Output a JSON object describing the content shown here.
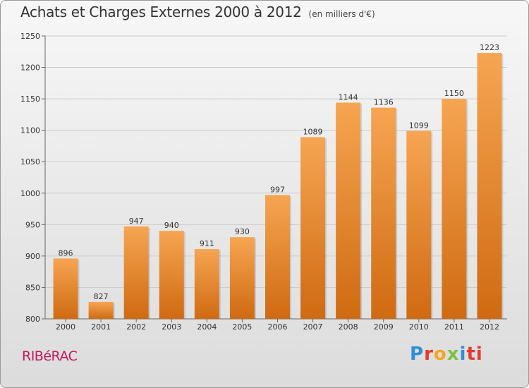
{
  "title": "Achats et Charges Externes 2000 à 2012",
  "subtitle": "(en milliers d'€)",
  "place": "RIBéRAC",
  "logo": {
    "text": "Proxiti",
    "letters": [
      "P",
      "r",
      "o",
      "x",
      "i",
      "ti"
    ]
  },
  "colors": {
    "bar_top": "#f6a552",
    "bar_bottom": "#cf6a12",
    "grid": "#cccccc",
    "axis": "#666666"
  },
  "chart_data": {
    "type": "bar",
    "categories": [
      "2000",
      "2001",
      "2002",
      "2003",
      "2004",
      "2005",
      "2006",
      "2007",
      "2008",
      "2009",
      "2010",
      "2011",
      "2012"
    ],
    "values": [
      896,
      827,
      947,
      940,
      911,
      930,
      997,
      1089,
      1144,
      1136,
      1099,
      1150,
      1223
    ],
    "ylim": [
      800,
      1250
    ],
    "yticks": [
      800,
      850,
      900,
      950,
      1000,
      1050,
      1100,
      1150,
      1200,
      1250
    ],
    "grid": true,
    "data_labels": true
  }
}
